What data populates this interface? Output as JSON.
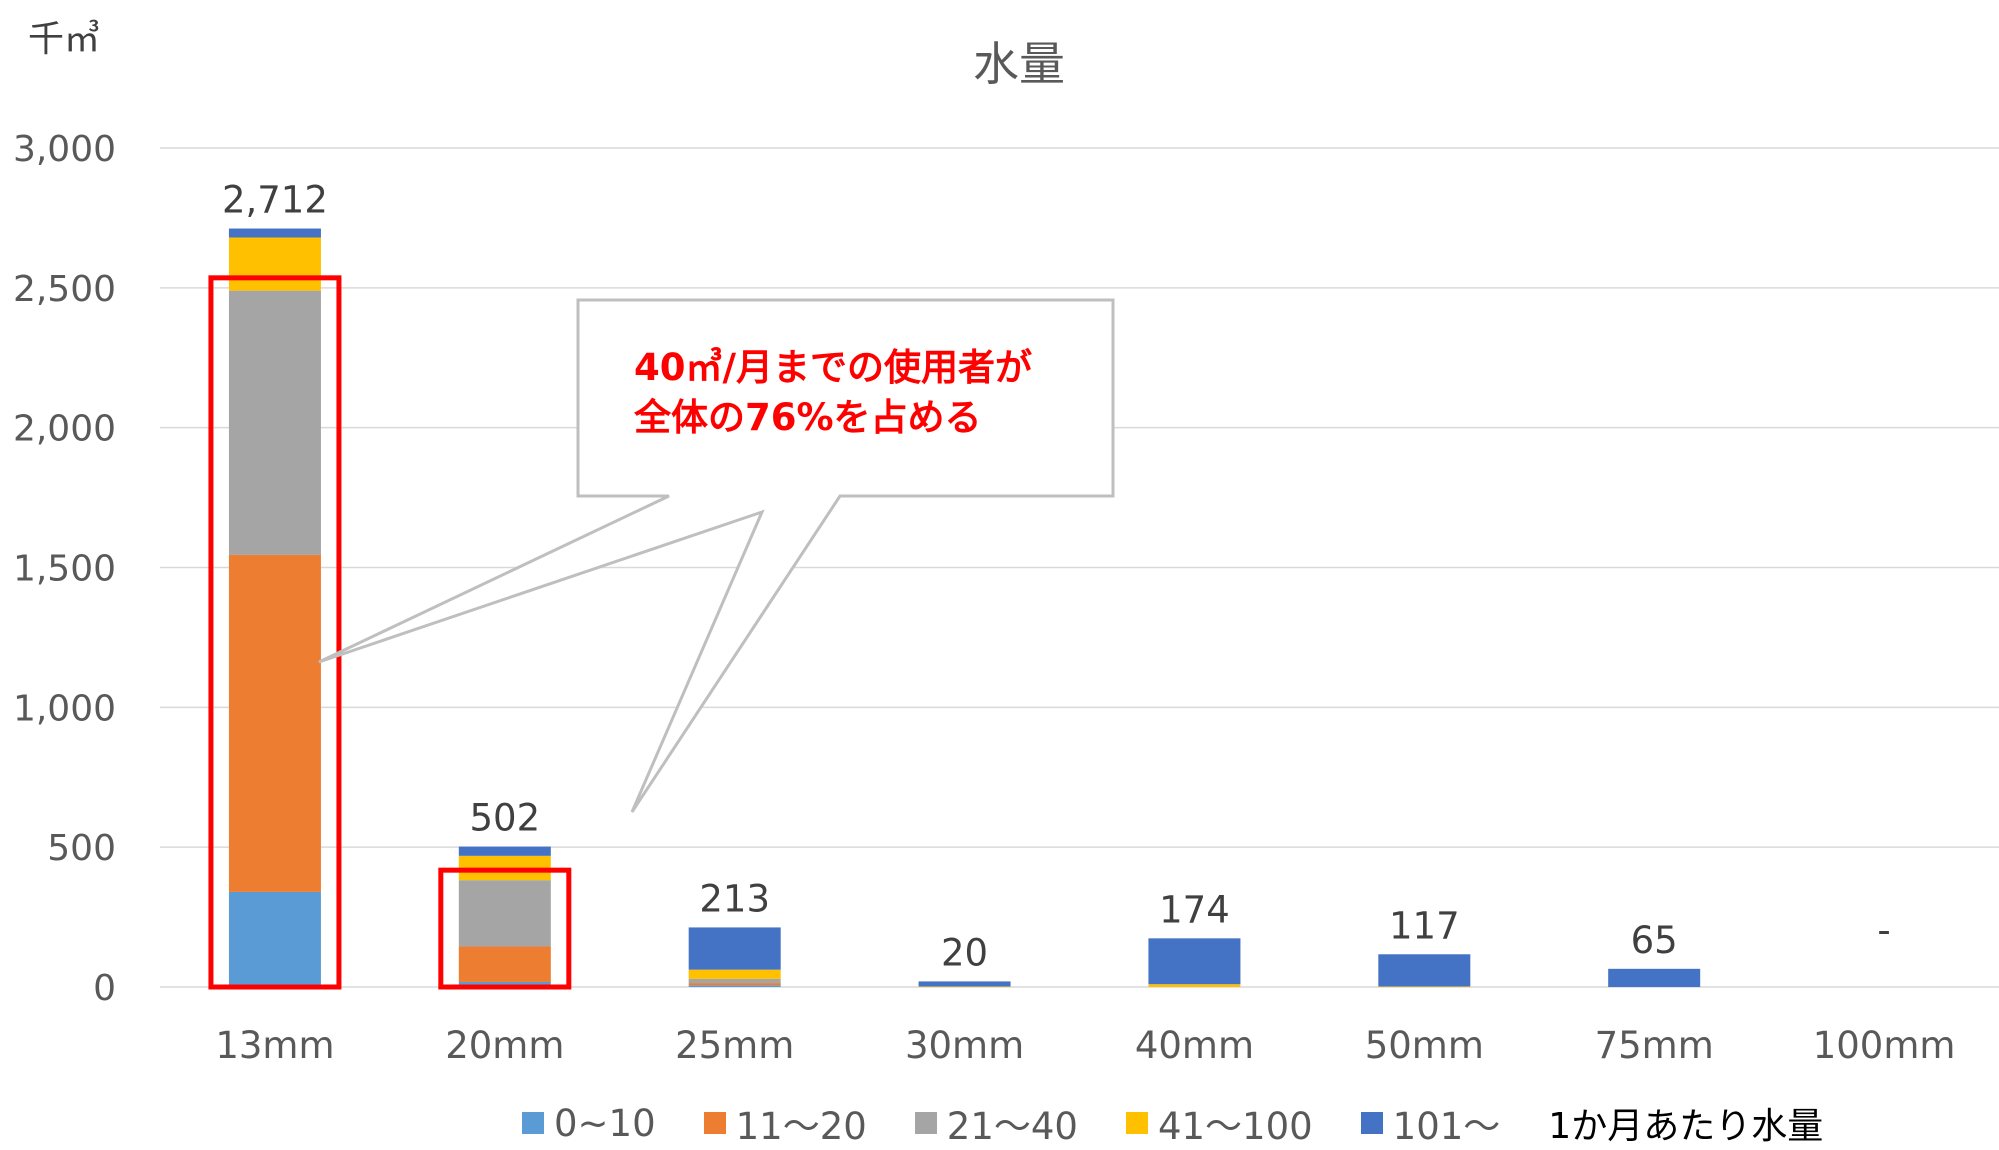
{
  "unit_label": "千㎥",
  "chart_data": {
    "type": "bar",
    "stacked": true,
    "title": "水量",
    "xlabel": "",
    "ylabel": "千㎥",
    "ylim": [
      0,
      3000
    ],
    "yticks": [
      0,
      500,
      1000,
      1500,
      2000,
      2500,
      3000
    ],
    "ytick_labels": [
      "0",
      "500",
      "1,000",
      "1,500",
      "2,000",
      "2,500",
      "3,000"
    ],
    "grid": true,
    "legend_position": "bottom",
    "categories": [
      "13mm",
      "20mm",
      "25mm",
      "30mm",
      "40mm",
      "50mm",
      "75mm",
      "100mm"
    ],
    "series": [
      {
        "name": "0~10",
        "color": "#5b9bd5",
        "values": [
          340,
          18,
          6,
          0,
          0,
          0,
          0,
          0
        ]
      },
      {
        "name": "11〜20",
        "color": "#ed7d31",
        "values": [
          1205,
          127,
          8,
          0,
          0,
          0,
          0,
          0
        ]
      },
      {
        "name": "21〜40",
        "color": "#a5a5a5",
        "values": [
          945,
          237,
          15,
          0,
          0,
          0,
          0,
          0
        ]
      },
      {
        "name": "41〜100",
        "color": "#ffc000",
        "values": [
          190,
          87,
          33,
          2,
          10,
          2,
          0,
          0
        ]
      },
      {
        "name": "101〜",
        "color": "#4472c4",
        "values": [
          32,
          33,
          151,
          18,
          164,
          115,
          65,
          0
        ]
      }
    ],
    "totals_series_name": "1か月あたり水量",
    "total_labels": [
      "2,712",
      "502",
      "213",
      "20",
      "174",
      "117",
      "65",
      "-"
    ],
    "totals": [
      2712,
      502,
      213,
      20,
      174,
      117,
      65,
      0
    ],
    "annotation": {
      "lines": [
        "40㎥/月までの使用者が",
        "全体の76%を占める"
      ],
      "highlight_color": "#ff0000",
      "highlighted_categories": [
        "13mm",
        "20mm"
      ],
      "highlight_range": [
        0,
        2500
      ]
    }
  }
}
